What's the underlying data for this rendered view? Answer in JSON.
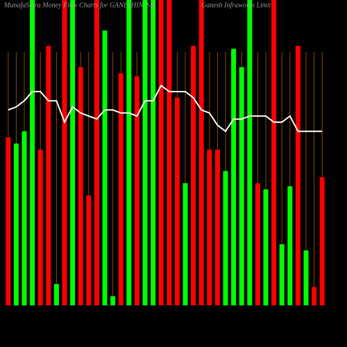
{
  "chart_data": {
    "type": "bar",
    "title": "MunafaSutra Money Flow Charts for GANESHIN_SM",
    "subtitle": "Ganesh Infraworks Limit",
    "categories": [
      null,
      null,
      null,
      null,
      null,
      null,
      null,
      null,
      null,
      null,
      null,
      null,
      null,
      null,
      null,
      null,
      null,
      null,
      null,
      null,
      null,
      null,
      null,
      null,
      null,
      null,
      null,
      null,
      null,
      null,
      null,
      null,
      null,
      null,
      null,
      null,
      null,
      null,
      null,
      null
    ],
    "values": [
      55,
      53,
      57,
      100,
      51,
      85,
      7,
      100,
      100,
      78,
      36,
      100,
      90,
      3,
      76,
      100,
      75,
      100,
      100,
      100,
      100,
      68,
      40,
      85,
      100,
      51,
      51,
      44,
      84,
      78,
      100,
      40,
      38,
      100,
      20,
      39,
      85,
      18,
      6,
      42
    ],
    "colors": [
      "#ff0000",
      "#00ff00",
      "#00ff00",
      "#00ff00",
      "#ff0000",
      "#ff0000",
      "#00ff00",
      "#ff0000",
      "#00ff00",
      "#ff0000",
      "#ff0000",
      "#ff0000",
      "#00ff00",
      "#00ff00",
      "#ff0000",
      "#00ff00",
      "#ff0000",
      "#00ff00",
      "#00ff00",
      "#ff0000",
      "#ff0000",
      "#ff0000",
      "#00ff00",
      "#ff0000",
      "#ff0000",
      "#ff0000",
      "#ff0000",
      "#00ff00",
      "#00ff00",
      "#00ff00",
      "#00ff00",
      "#ff0000",
      "#00ff00",
      "#ff0000",
      "#00ff00",
      "#00ff00",
      "#ff0000",
      "#00ff00",
      "#ff0000",
      "#ff0000"
    ],
    "line": {
      "color": "#ffffff",
      "values": [
        64,
        65,
        67,
        70,
        70,
        67,
        67,
        60,
        65,
        63,
        62,
        61,
        64,
        64,
        63,
        63,
        62,
        67,
        67,
        72,
        70,
        70,
        70,
        68,
        64,
        63,
        59,
        57,
        61,
        61,
        62,
        62,
        62,
        60,
        60,
        62,
        57,
        57,
        57,
        57
      ]
    },
    "ylim": [
      0,
      100
    ],
    "grid": true,
    "grid_color": "#8a4a00"
  }
}
